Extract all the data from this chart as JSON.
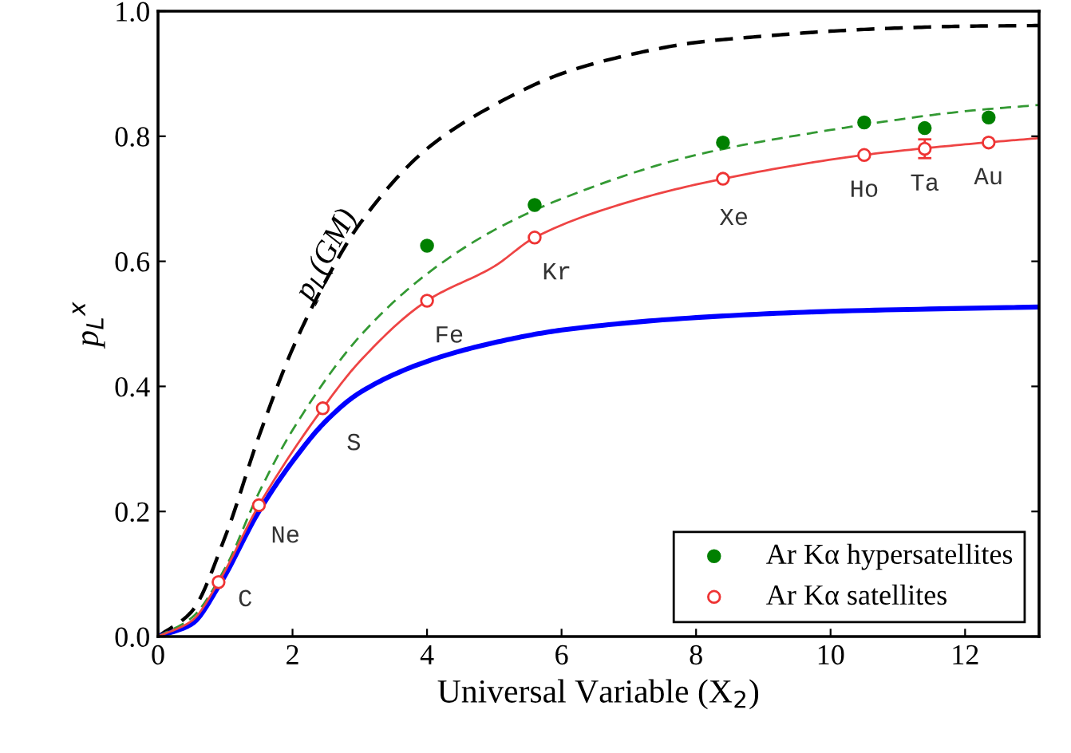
{
  "chart_data": {
    "type": "line",
    "xlabel": "Universal Variable (X$_{2}$)",
    "ylabel": "p$_{L}$$^{x}$",
    "xlim": [
      0,
      13.1
    ],
    "ylim": [
      0,
      1.0
    ],
    "xticks": [
      0,
      2,
      4,
      6,
      8,
      10,
      12
    ],
    "yticks": [
      {
        "value": 0,
        "label": "0.0"
      },
      {
        "value": 0.2,
        "label": "0.2"
      },
      {
        "value": 0.4,
        "label": "0.4"
      },
      {
        "value": 0.6,
        "label": "0.6"
      },
      {
        "value": 0.8,
        "label": "0.8"
      },
      {
        "value": 1.0,
        "label": "1.0"
      }
    ],
    "grid": false,
    "legend": "bottom right",
    "series": [
      {
        "color": "#000000",
        "line_style": "dashed",
        "x": [
          0,
          0.5,
          1,
          1.5,
          2,
          2.5,
          3,
          4,
          5,
          6,
          7,
          8,
          9,
          10,
          11,
          12,
          13.1
        ],
        "values": [
          0,
          0.04,
          0.16,
          0.32,
          0.46,
          0.57,
          0.66,
          0.78,
          0.85,
          0.9,
          0.93,
          0.95,
          0.96,
          0.968,
          0.973,
          0.976,
          0.977
        ]
      },
      {
        "color": "#0000ff",
        "line_style": "solid",
        "x": [
          0,
          0.5,
          0.9,
          1.5,
          2,
          2.5,
          3,
          4,
          5,
          6,
          8,
          10,
          13.1
        ],
        "values": [
          0,
          0.02,
          0.08,
          0.2,
          0.28,
          0.345,
          0.39,
          0.44,
          0.47,
          0.49,
          0.51,
          0.52,
          0.527
        ]
      },
      {
        "color": "#339933",
        "line_style": "dashed",
        "x": [
          0,
          0.5,
          1,
          1.5,
          2,
          3,
          4,
          5,
          6,
          8,
          10,
          12,
          13.1
        ],
        "values": [
          0,
          0.03,
          0.11,
          0.23,
          0.33,
          0.48,
          0.58,
          0.65,
          0.7,
          0.77,
          0.81,
          0.84,
          0.85
        ]
      },
      {
        "color": "#ee4444",
        "line_style": "solid",
        "x": [
          0,
          0.5,
          0.9,
          1.5,
          2.45,
          3,
          4,
          5,
          5.6,
          7,
          8.4,
          10.5,
          12,
          13.1
        ],
        "values": [
          0,
          0.025,
          0.087,
          0.21,
          0.365,
          0.44,
          0.537,
          0.592,
          0.638,
          0.695,
          0.732,
          0.77,
          0.787,
          0.797
        ]
      },
      {
        "type": "scatter",
        "name": "Ar Kα hypersatellites",
        "color": "#008000",
        "marker": "circle",
        "x": [
          4.0,
          5.6,
          8.4,
          10.5,
          11.4,
          12.35
        ],
        "values": [
          0.625,
          0.69,
          0.79,
          0.822,
          0.813,
          0.83
        ]
      },
      {
        "type": "scatter",
        "name": "Ar Kα satellites",
        "color": "#ee3333",
        "marker": "circle",
        "x": [
          0.9,
          1.5,
          2.45,
          4.0,
          5.6,
          8.4,
          10.5,
          11.4,
          12.35
        ],
        "values": [
          0.087,
          0.21,
          0.365,
          0.537,
          0.638,
          0.732,
          0.77,
          0.78,
          0.79
        ],
        "errors": [
          null,
          null,
          null,
          null,
          null,
          null,
          null,
          0.015,
          null
        ]
      }
    ],
    "annotations": [
      {
        "text": "C",
        "x": 0.9,
        "y": 0.087
      },
      {
        "text": "Ne",
        "x": 1.5,
        "y": 0.21
      },
      {
        "text": "S",
        "x": 2.45,
        "y": 0.365
      },
      {
        "text": "Fe",
        "x": 4.0,
        "y": 0.537
      },
      {
        "text": "Kr",
        "x": 5.6,
        "y": 0.638
      },
      {
        "text": "Xe",
        "x": 8.4,
        "y": 0.732
      },
      {
        "text": "Ho",
        "x": 10.5,
        "y": 0.77
      },
      {
        "text": "Ta",
        "x": 11.4,
        "y": 0.78
      },
      {
        "text": "Au",
        "x": 12.35,
        "y": 0.79
      },
      "p$_{L}$(GM)"
    ]
  }
}
